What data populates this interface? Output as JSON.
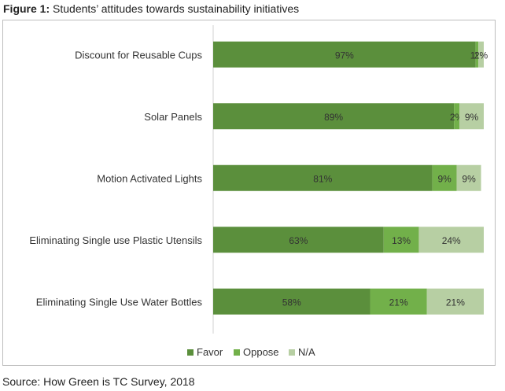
{
  "figure": {
    "label": "Figure 1:",
    "title": "Students’ attitudes towards sustainability initiatives",
    "source": "Source: How Green is TC Survey, 2018"
  },
  "chart_data": {
    "type": "bar",
    "orientation": "horizontal",
    "stacked": true,
    "categories": [
      "Discount for Reusable Cups",
      "Solar Panels",
      "Motion Activated Lights",
      "Eliminating Single use Plastic Utensils",
      "Eliminating Single Use Water Bottles"
    ],
    "series": [
      {
        "name": "Favor",
        "color": "#5b8f3c",
        "values": [
          97,
          89,
          81,
          63,
          58
        ]
      },
      {
        "name": "Oppose",
        "color": "#72b04a",
        "values": [
          1,
          2,
          9,
          13,
          21
        ]
      },
      {
        "name": "N/A",
        "color": "#b7cfa3",
        "values": [
          2,
          9,
          9,
          24,
          21
        ]
      }
    ],
    "data_labels": [
      [
        "97%",
        "1%",
        "2%"
      ],
      [
        "89%",
        "2%",
        "9%"
      ],
      [
        "81%",
        "9%",
        "9%"
      ],
      [
        "63%",
        "13%",
        "24%"
      ],
      [
        "58%",
        "21%",
        "21%"
      ]
    ],
    "xlim": [
      0,
      100
    ],
    "grid": false,
    "legend_position": "bottom"
  }
}
